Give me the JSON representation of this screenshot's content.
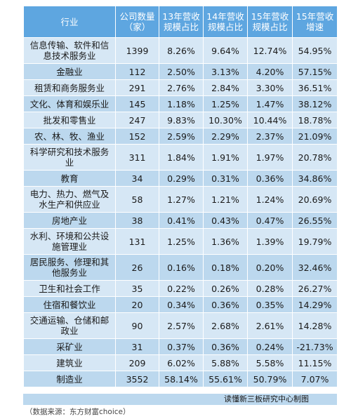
{
  "table": {
    "headers": [
      "行业",
      "公司数量（家）",
      "13年营收规模占比",
      "14年营收规模占比",
      "15年营收规模占比",
      "15年营收增速"
    ],
    "rows": [
      {
        "industry": "信息传输、软件和信息技术服务业",
        "count": "1399",
        "y13": "8.26%",
        "y14": "9.64%",
        "y15": "12.74%",
        "growth": "54.95%"
      },
      {
        "industry": "金融业",
        "count": "112",
        "y13": "2.50%",
        "y14": "3.13%",
        "y15": "4.20%",
        "growth": "57.15%"
      },
      {
        "industry": "租赁和商务服务业",
        "count": "291",
        "y13": "2.76%",
        "y14": "2.84%",
        "y15": "3.30%",
        "growth": "36.51%"
      },
      {
        "industry": "文化、体育和娱乐业",
        "count": "145",
        "y13": "1.18%",
        "y14": "1.25%",
        "y15": "1.47%",
        "growth": "38.12%"
      },
      {
        "industry": "批发和零售业",
        "count": "247",
        "y13": "9.83%",
        "y14": "10.30%",
        "y15": "10.44%",
        "growth": "18.78%"
      },
      {
        "industry": "农、林、牧、渔业",
        "count": "152",
        "y13": "2.59%",
        "y14": "2.29%",
        "y15": "2.37%",
        "growth": "21.09%"
      },
      {
        "industry": "科学研究和技术服务业",
        "count": "311",
        "y13": "1.84%",
        "y14": "1.91%",
        "y15": "1.97%",
        "growth": "20.78%"
      },
      {
        "industry": "教育",
        "count": "34",
        "y13": "0.29%",
        "y14": "0.31%",
        "y15": "0.36%",
        "growth": "34.86%"
      },
      {
        "industry": "电力、热力、燃气及水生产和供应业",
        "count": "58",
        "y13": "1.27%",
        "y14": "1.21%",
        "y15": "1.24%",
        "growth": "20.69%"
      },
      {
        "industry": "房地产业",
        "count": "38",
        "y13": "0.41%",
        "y14": "0.43%",
        "y15": "0.47%",
        "growth": "26.55%"
      },
      {
        "industry": "水利、环境和公共设施管理业",
        "count": "131",
        "y13": "1.25%",
        "y14": "1.36%",
        "y15": "1.39%",
        "growth": "19.79%"
      },
      {
        "industry": "居民服务、修理和其他服务业",
        "count": "26",
        "y13": "0.16%",
        "y14": "0.18%",
        "y15": "0.20%",
        "growth": "32.46%"
      },
      {
        "industry": "卫生和社会工作",
        "count": "35",
        "y13": "0.22%",
        "y14": "0.26%",
        "y15": "0.28%",
        "growth": "26.27%"
      },
      {
        "industry": "住宿和餐饮业",
        "count": "20",
        "y13": "0.34%",
        "y14": "0.36%",
        "y15": "0.35%",
        "growth": "14.29%"
      },
      {
        "industry": "交通运输、仓储和邮政业",
        "count": "90",
        "y13": "2.57%",
        "y14": "2.68%",
        "y15": "2.61%",
        "growth": "14.28%"
      },
      {
        "industry": "采矿业",
        "count": "31",
        "y13": "0.37%",
        "y14": "0.36%",
        "y15": "0.24%",
        "growth": "-21.73%"
      },
      {
        "industry": "建筑业",
        "count": "209",
        "y13": "6.02%",
        "y14": "5.88%",
        "y15": "5.58%",
        "growth": "11.15%"
      },
      {
        "industry": "制造业",
        "count": "3552",
        "y13": "58.14%",
        "y14": "55.61%",
        "y15": "50.79%",
        "growth": "7.07%"
      }
    ]
  },
  "footer_note": "读懂新三板研究中心制图",
  "source_note": "（数据来源：东方财富choice）",
  "colors": {
    "header": "#5ea6e0",
    "row_light": "#d6e7f5",
    "row_dark": "#bcd8ee"
  }
}
